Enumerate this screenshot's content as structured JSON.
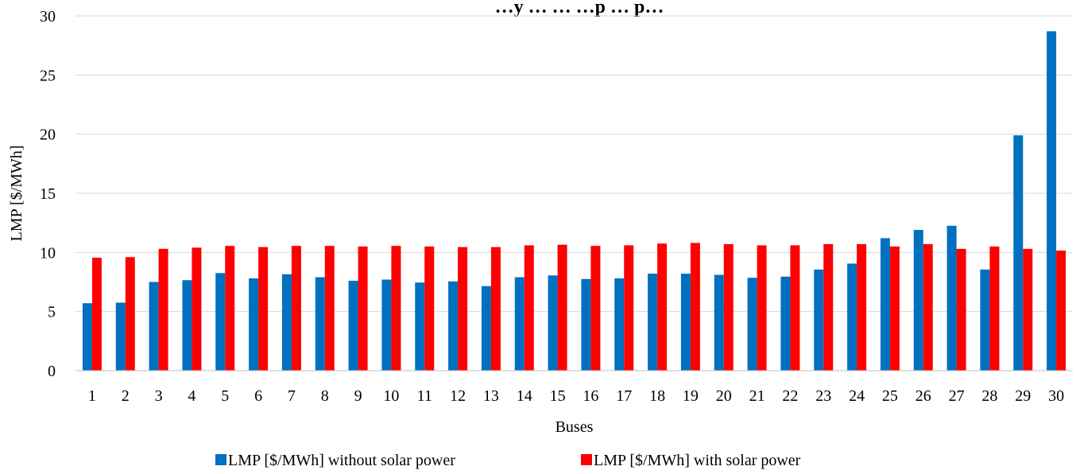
{
  "chart_data": {
    "type": "bar",
    "title": "…y … … …p … p…",
    "xlabel": "Buses",
    "ylabel": "LMP [$/MWh]",
    "ylim": [
      0,
      30
    ],
    "yticks": [
      0,
      5,
      10,
      15,
      20,
      25,
      30
    ],
    "grid": true,
    "legend_position": "bottom",
    "categories": [
      "1",
      "2",
      "3",
      "4",
      "5",
      "6",
      "7",
      "8",
      "9",
      "10",
      "11",
      "12",
      "13",
      "14",
      "15",
      "16",
      "17",
      "18",
      "19",
      "20",
      "21",
      "22",
      "23",
      "24",
      "25",
      "26",
      "27",
      "28",
      "29",
      "30"
    ],
    "series": [
      {
        "name": "LMP [$/MWh] without solar power",
        "color": "#0070c0",
        "values": [
          5.7,
          5.75,
          7.5,
          7.65,
          8.25,
          7.8,
          8.15,
          7.9,
          7.6,
          7.7,
          7.45,
          7.55,
          7.15,
          7.9,
          8.05,
          7.75,
          7.8,
          8.2,
          8.2,
          8.1,
          7.85,
          7.95,
          8.55,
          9.05,
          11.2,
          11.9,
          12.25,
          8.55,
          19.9,
          28.7
        ]
      },
      {
        "name": "LMP [$/MWh] with solar power",
        "color": "#ff0000",
        "values": [
          9.55,
          9.6,
          10.3,
          10.4,
          10.55,
          10.45,
          10.55,
          10.55,
          10.5,
          10.55,
          10.5,
          10.45,
          10.45,
          10.6,
          10.65,
          10.55,
          10.6,
          10.75,
          10.8,
          10.7,
          10.6,
          10.6,
          10.7,
          10.7,
          10.5,
          10.7,
          10.3,
          10.5,
          10.3,
          10.15
        ]
      }
    ]
  }
}
